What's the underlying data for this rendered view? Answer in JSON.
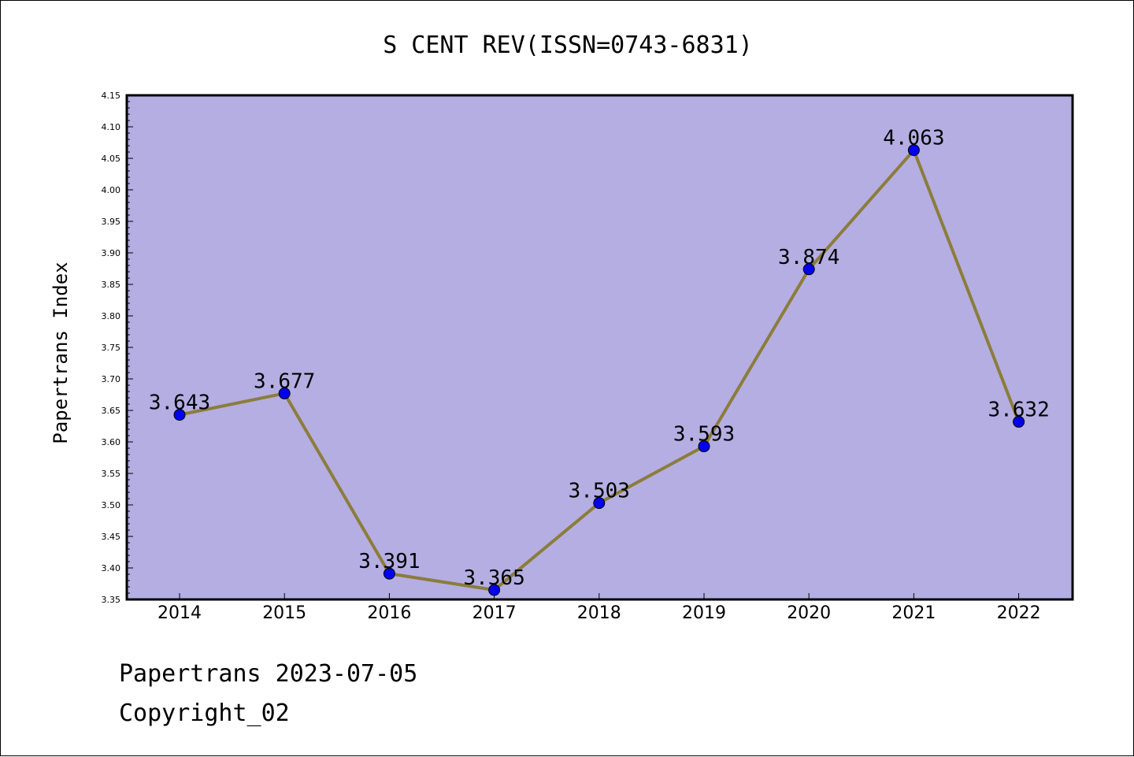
{
  "chart_data": {
    "type": "line",
    "title": "S CENT REV(ISSN=0743-6831)",
    "ylabel": "Papertrans Index",
    "xlabel": "",
    "categories": [
      "2014",
      "2015",
      "2016",
      "2017",
      "2018",
      "2019",
      "2020",
      "2021",
      "2022"
    ],
    "series": [
      {
        "values": [
          3.643,
          3.677,
          3.391,
          3.365,
          3.503,
          3.593,
          3.874,
          4.063,
          3.632
        ]
      }
    ],
    "data_labels": [
      "3.643",
      "3.677",
      "3.391",
      "3.365",
      "3.503",
      "3.593",
      "3.874",
      "4.063",
      "3.632"
    ],
    "ylim": [
      3.35,
      4.15
    ],
    "yticks": [
      "3.35",
      "3.40",
      "3.45",
      "3.50",
      "3.55",
      "3.60",
      "3.65",
      "3.70",
      "3.75",
      "3.80",
      "3.85",
      "3.90",
      "3.95",
      "4.00",
      "4.05",
      "4.10",
      "4.15"
    ],
    "grid": false,
    "legend": "none",
    "colors": {
      "plot_background": "#b5aee3",
      "line": "#8b7d3a",
      "marker": "#0000ee"
    }
  },
  "footer": {
    "line1": "Papertrans 2023-07-05",
    "line2": "Copyright_02"
  }
}
